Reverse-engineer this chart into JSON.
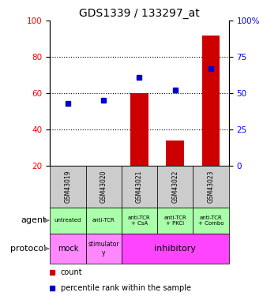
{
  "title": "GDS1339 / 133297_at",
  "samples": [
    "GSM43019",
    "GSM43020",
    "GSM43021",
    "GSM43022",
    "GSM43023"
  ],
  "count_values": [
    20,
    20,
    60,
    34,
    92
  ],
  "percentile_values": [
    43,
    45,
    61,
    52,
    67
  ],
  "left_ylim": [
    20,
    100
  ],
  "right_ylim": [
    0,
    100
  ],
  "left_yticks": [
    20,
    40,
    60,
    80,
    100
  ],
  "right_yticks": [
    0,
    25,
    50,
    75,
    100
  ],
  "right_yticklabels": [
    "0",
    "25",
    "50",
    "75",
    "100%"
  ],
  "bar_color": "#cc0000",
  "dot_color": "#0000cc",
  "agent_labels": [
    "untreated",
    "anti-TCR",
    "anti-TCR\n+ CsA",
    "anti-TCR\n+ PKCi",
    "anti-TCR\n+ Combo"
  ],
  "agent_color": "#aaffaa",
  "protocol_mock_color": "#ff88ff",
  "protocol_stim_color": "#ff88ff",
  "protocol_inhib_color": "#ff44ff",
  "sample_box_color": "#cccccc",
  "legend_count_color": "#cc0000",
  "legend_pct_color": "#0000cc",
  "gridline_yticks": [
    40,
    60,
    80
  ]
}
